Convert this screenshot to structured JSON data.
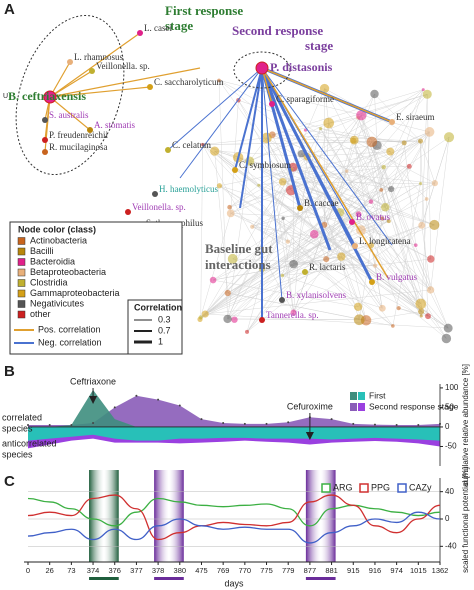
{
  "network": {
    "letter": "A",
    "first_stage": [
      "First response",
      "stage"
    ],
    "second_stage": [
      "Second response",
      "stage"
    ],
    "baseline": [
      "Baseline gut",
      "interactions"
    ],
    "unknown_mark": "U",
    "nodes": [
      {
        "label": "B. ceftriaxensis",
        "color": "#2e7d32"
      },
      {
        "label": "P. distasonis",
        "color": "#7b3f9e"
      },
      {
        "label": "L. casei",
        "color": "#333333"
      },
      {
        "label": "L. rhamnosus",
        "color": "#333333"
      },
      {
        "label": "Veillonella. sp.",
        "color": "#333333"
      },
      {
        "label": "C. saccharolyticum",
        "color": "#333333"
      },
      {
        "label": "S. australis",
        "color": "#a03cb4"
      },
      {
        "label": "P. freudenreichii",
        "color": "#333333"
      },
      {
        "label": "R. mucilaginosa",
        "color": "#333333"
      },
      {
        "label": "A. stomatis",
        "color": "#a03cb4"
      },
      {
        "label": "C. sparagiforme",
        "color": "#333333"
      },
      {
        "label": "E. siraeum",
        "color": "#333333"
      },
      {
        "label": "C. celatum",
        "color": "#333333"
      },
      {
        "label": "C. symbiosum",
        "color": "#333333"
      },
      {
        "label": "H. haemolyticus",
        "color": "#2aa198"
      },
      {
        "label": "Veillonella. sp.",
        "color": "#a03cb4"
      },
      {
        "label": "S. thermophilus",
        "color": "#333333"
      },
      {
        "label": "B. caccae",
        "color": "#333333"
      },
      {
        "label": "B. ovatus",
        "color": "#a03cb4"
      },
      {
        "label": "L. longicatena",
        "color": "#333333"
      },
      {
        "label": "R. lactaris",
        "color": "#333333"
      },
      {
        "label": "B. vulgatus",
        "color": "#a03cb4"
      },
      {
        "label": "B. xylanisolvens",
        "color": "#a03cb4"
      },
      {
        "label": "Tannerella. sp.",
        "color": "#a03cb4"
      }
    ]
  },
  "legend": {
    "title": "Node color (class)",
    "classes": [
      {
        "name": "Actinobacteria",
        "color": "#c8641e"
      },
      {
        "name": "Bacilli",
        "color": "#b8860b"
      },
      {
        "name": "Bacteroidia",
        "color": "#e0218a"
      },
      {
        "name": "Betaproteobacteria",
        "color": "#e8b07a"
      },
      {
        "name": "Clostridia",
        "color": "#c0b030"
      },
      {
        "name": "Gammaproteobacteria",
        "color": "#d4a017"
      },
      {
        "name": "Negativicutes",
        "color": "#555555"
      },
      {
        "name": "other",
        "color": "#cc2020"
      }
    ],
    "correlation_title": "Correlation",
    "correlation_widths": [
      0.3,
      0.7,
      1.0
    ],
    "pos": "Pos. correlation",
    "pos_color": "#e0a030",
    "neg": "Neg. correlation",
    "neg_color": "#4a72d0"
  },
  "panel_b": {
    "letter": "B",
    "type": "area",
    "correlated_label": [
      "correlated",
      "species"
    ],
    "anticorrelated_label": [
      "anticorrelated",
      "species"
    ],
    "annotations": [
      "Ceftriaxone",
      "Cefuroxime"
    ],
    "legend": [
      "First",
      "Second response stage"
    ],
    "series": [
      {
        "name": "First",
        "color": "#3e8e7e",
        "anti_color": "#28c0b8",
        "values": [
          0,
          0,
          5,
          95,
          20,
          0,
          0,
          0,
          0,
          0,
          0,
          0,
          0,
          0,
          0,
          0,
          0,
          0,
          0,
          0
        ],
        "anti_values": [
          -35,
          -30,
          -25,
          -20,
          -30,
          -35,
          -35,
          -30,
          -30,
          -28,
          -28,
          -30,
          -30,
          -30,
          -32,
          -30,
          -28,
          -30,
          -32,
          -35
        ]
      },
      {
        "name": "Second response stage",
        "color": "#8a5cb8",
        "anti_color": "#9a40e0",
        "values": [
          5,
          5,
          5,
          10,
          50,
          80,
          70,
          55,
          20,
          10,
          8,
          8,
          12,
          25,
          20,
          8,
          6,
          5,
          5,
          8
        ],
        "anti_values": [
          -55,
          -45,
          -35,
          -30,
          -40,
          -40,
          -40,
          -42,
          -40,
          -38,
          -35,
          -38,
          -40,
          -45,
          -40,
          -38,
          -36,
          -38,
          -42,
          -50
        ]
      }
    ],
    "ylim": [
      -100,
      110
    ],
    "yticks": [
      100,
      50,
      0,
      -50
    ],
    "y_label": "cumulative relative abundance [%]"
  },
  "panel_c": {
    "letter": "C",
    "type": "line",
    "categories": [
      "0",
      "26",
      "73",
      "374",
      "376",
      "377",
      "378",
      "380",
      "475",
      "769",
      "770",
      "775",
      "779",
      "877",
      "881",
      "915",
      "916",
      "974",
      "1015",
      "1362"
    ],
    "x_label": "days",
    "series": [
      {
        "name": "ARG",
        "color": "#3cb043",
        "values": [
          30,
          25,
          15,
          0,
          -10,
          10,
          30,
          25,
          20,
          18,
          20,
          22,
          15,
          -10,
          15,
          20,
          15,
          10,
          5,
          10
        ]
      },
      {
        "name": "PPG",
        "color": "#d03030",
        "values": [
          5,
          10,
          5,
          30,
          35,
          15,
          -30,
          -20,
          -10,
          -5,
          -8,
          -10,
          -5,
          25,
          35,
          20,
          -10,
          -20,
          0,
          20
        ]
      },
      {
        "name": "CAZy",
        "color": "#4060c8",
        "values": [
          -25,
          -20,
          -15,
          -30,
          -15,
          -30,
          -10,
          0,
          -10,
          -15,
          -12,
          -15,
          -15,
          -35,
          -20,
          -10,
          0,
          -5,
          10,
          0
        ]
      }
    ],
    "ylim": [
      -60,
      60
    ],
    "yticks": [
      40,
      0,
      -40
    ],
    "y_label": "scaled functional potential [%]"
  }
}
